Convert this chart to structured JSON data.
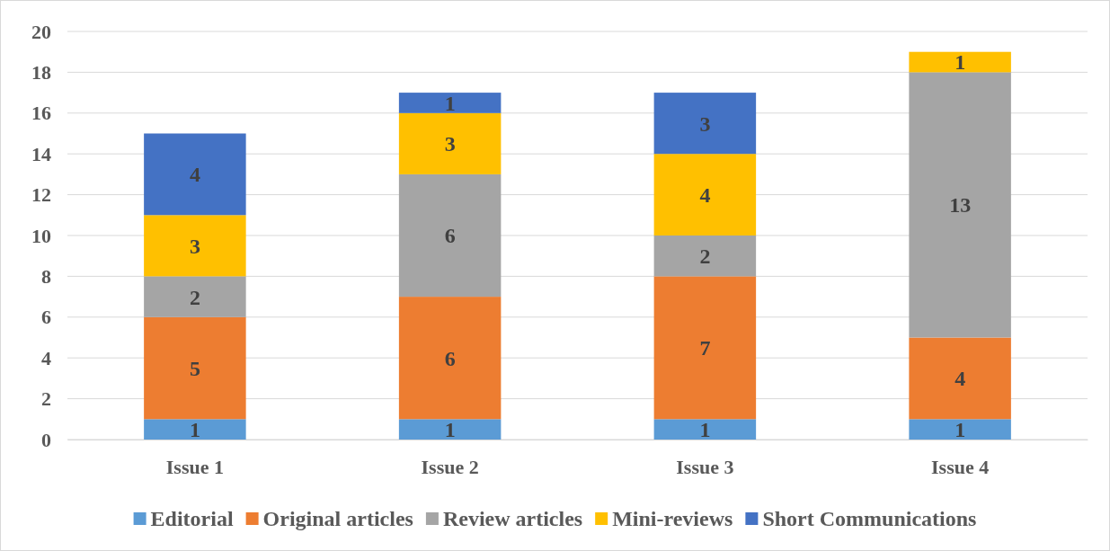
{
  "chart_data": {
    "type": "bar",
    "stacked": true,
    "categories": [
      "Issue 1",
      "Issue 2",
      "Issue 3",
      "Issue 4"
    ],
    "series": [
      {
        "name": "Editorial",
        "color": "#5b9bd5",
        "values": [
          1,
          1,
          1,
          1
        ]
      },
      {
        "name": "Original articles",
        "color": "#ed7d31",
        "values": [
          5,
          6,
          7,
          4
        ]
      },
      {
        "name": "Review articles",
        "color": "#a5a5a5",
        "values": [
          2,
          6,
          2,
          13
        ]
      },
      {
        "name": "Mini-reviews",
        "color": "#ffc000",
        "values": [
          3,
          3,
          4,
          1
        ]
      },
      {
        "name": "Short Communications",
        "color": "#4472c4",
        "values": [
          4,
          1,
          3,
          null
        ]
      }
    ],
    "ylim": [
      0,
      20
    ],
    "yticks": [
      0,
      2,
      4,
      6,
      8,
      10,
      12,
      14,
      16,
      18,
      20
    ],
    "grid": "y",
    "legend": "bottom",
    "data_labels": true
  }
}
